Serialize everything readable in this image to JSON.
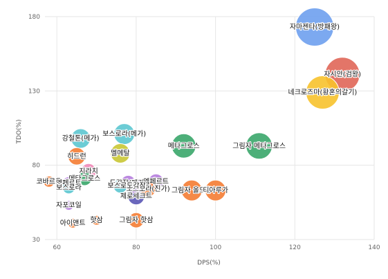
{
  "chart_data": {
    "type": "scatter",
    "xlabel": "DPS(%)",
    "ylabel": "TDO(%)",
    "xlim": [
      57,
      140
    ],
    "ylim": [
      30,
      180
    ],
    "xticks": [
      60,
      80,
      100,
      120,
      140
    ],
    "yticks": [
      30,
      80,
      130,
      180
    ],
    "grid": true,
    "points": [
      {
        "label": "자마젠타(방패왕)",
        "x": 125,
        "y": 173,
        "size": 55,
        "color": "#6ea0ee"
      },
      {
        "label": "자시안(검왕)",
        "x": 132,
        "y": 141,
        "size": 50,
        "color": "#e06658"
      },
      {
        "label": "네크로즈마(황혼의갈기)",
        "x": 127,
        "y": 129,
        "size": 48,
        "color": "#f7c22c"
      },
      {
        "label": "메타그로스",
        "x": 92,
        "y": 93,
        "size": 35,
        "color": "#3aa66a"
      },
      {
        "label": "그림자 메타그로스",
        "x": 111,
        "y": 93,
        "size": 38,
        "color": "#3aa66a"
      },
      {
        "label": "보스로라(메가)",
        "x": 77,
        "y": 101,
        "size": 30,
        "color": "#5cc6d0"
      },
      {
        "label": "강철톤(메가)",
        "x": 66,
        "y": 98,
        "size": 28,
        "color": "#5cc6d0"
      },
      {
        "label": "멜메탈",
        "x": 76,
        "y": 88,
        "size": 28,
        "color": "#c9c734"
      },
      {
        "label": "히드런",
        "x": 65,
        "y": 86,
        "size": 25,
        "color": "#f47c33"
      },
      {
        "label": "지라치",
        "x": 68,
        "y": 76,
        "size": 22,
        "color": "#f08ab8"
      },
      {
        "label": "메타그로스",
        "x": 67,
        "y": 71,
        "size": 20,
        "color": "#3aa66a"
      },
      {
        "label": "코바르온",
        "x": 58,
        "y": 69,
        "size": 16,
        "color": "#f47c33"
      },
      {
        "label": "엠페르트",
        "x": 63,
        "y": 68,
        "size": 18,
        "color": "#b57ddd"
      },
      {
        "label": "보스로라",
        "x": 63,
        "y": 65,
        "size": 18,
        "color": "#5cc6d0"
      },
      {
        "label": "도각잠(메가)",
        "x": 78,
        "y": 68,
        "size": 22,
        "color": "#b57ddd"
      },
      {
        "label": "엠페르트",
        "x": 85,
        "y": 69,
        "size": 22,
        "color": "#b57ddd"
      },
      {
        "label": "보스로라",
        "x": 76,
        "y": 66,
        "size": 20,
        "color": "#5cc6d0"
      },
      {
        "label": "보스로라(진가)",
        "x": 83,
        "y": 64,
        "size": 22,
        "color": "#f47c33"
      },
      {
        "label": "도각잠",
        "x": 80,
        "y": 66,
        "size": 22,
        "color": "#b57ddd"
      },
      {
        "label": "제로세크트",
        "x": 80,
        "y": 59,
        "size": 24,
        "color": "#5a57b5"
      },
      {
        "label": "그림자 올드류",
        "x": 94,
        "y": 63,
        "size": 30,
        "color": "#f47c33"
      },
      {
        "label": "티아루가",
        "x": 100,
        "y": 63,
        "size": 30,
        "color": "#f47c33"
      },
      {
        "label": "자포코일",
        "x": 63,
        "y": 53,
        "size": 14,
        "color": "#b57ddd"
      },
      {
        "label": "그림자 핫삼",
        "x": 80,
        "y": 43,
        "size": 22,
        "color": "#f47c33"
      },
      {
        "label": "핫삼",
        "x": 70,
        "y": 43,
        "size": 14,
        "color": "#f47c33"
      },
      {
        "label": "아이앤트",
        "x": 64,
        "y": 41,
        "size": 14,
        "color": "#f47c33"
      }
    ]
  }
}
